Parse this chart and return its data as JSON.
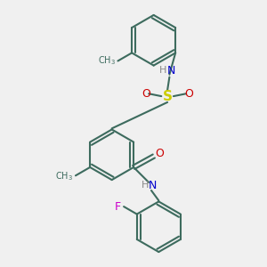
{
  "bg_color": "#f0f0f0",
  "bond_color": "#3d6b5e",
  "bond_width": 1.5,
  "atom_colors": {
    "C": "#3d6b5e",
    "H": "#888888",
    "N": "#0000cc",
    "O": "#cc0000",
    "S": "#cccc00",
    "F": "#cc00cc"
  },
  "font_size_atom": 9,
  "font_size_H": 8
}
